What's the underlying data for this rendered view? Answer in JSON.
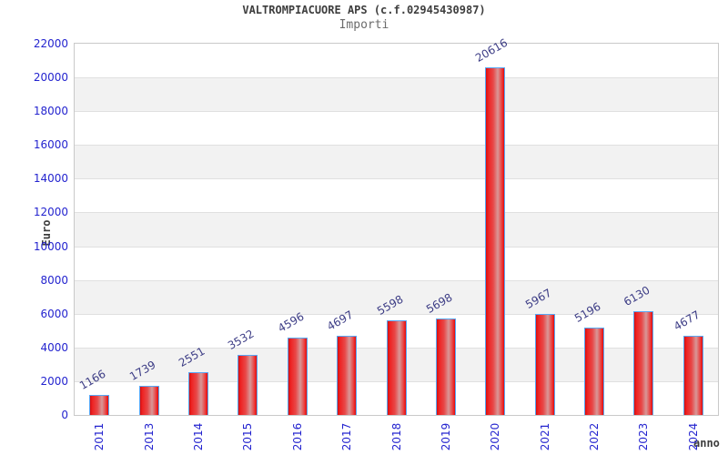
{
  "header": {
    "title": "VALTROMPIACUORE APS (c.f.02945430987)",
    "subtitle": "Importi"
  },
  "chart_data": {
    "type": "bar",
    "title": "VALTROMPIACUORE APS (c.f.02945430987)",
    "subtitle": "Importi",
    "xlabel": "anno",
    "ylabel": "Euro",
    "categories": [
      "2011",
      "2013",
      "2014",
      "2015",
      "2016",
      "2017",
      "2018",
      "2019",
      "2020",
      "2021",
      "2022",
      "2023",
      "2024"
    ],
    "values": [
      1166,
      1739,
      2551,
      3532,
      4596,
      4697,
      5598,
      5698,
      20616,
      5967,
      5196,
      6130,
      4677
    ],
    "ylim": [
      0,
      22000
    ],
    "yticks": [
      0,
      2000,
      4000,
      6000,
      8000,
      10000,
      12000,
      14000,
      16000,
      18000,
      20000,
      22000
    ],
    "grid": "horizontal alternating bands with gridlines every 2000",
    "legend": "none",
    "colors": {
      "bar_fill": "#e32219",
      "bar_fill_light": "#d89898",
      "bar_border": "#58a7f5",
      "tick_text": "#2424cf",
      "value_label_text": "#3c3c85",
      "band_alt": "#f2f2f2",
      "grid_line": "#e0e0e0",
      "plot_border": "#c9c9c9",
      "title_text": "#3d3d3d",
      "subtitle_text": "#6b6b6b"
    }
  }
}
